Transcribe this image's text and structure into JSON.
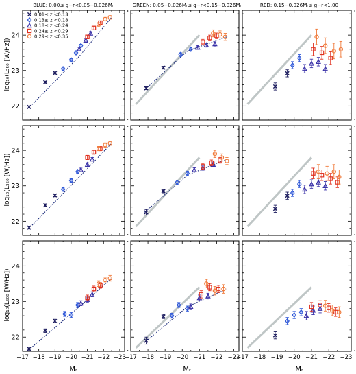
{
  "figure": {
    "column_titles": [
      "BLUE: 0.00≤ g−r<0.05−0.026Mᵣ",
      "GREEN: 0.05−0.026Mᵣ≤ g−r<0.15−0.026Mᵣ",
      "RED: 0.15−0.026Mᵣ≤ g−r<1.00"
    ],
    "row_ylabels": [
      "log₁₀(L₂₅₀ [W/Hz])",
      "log₁₀(L₃₅₀ [W/Hz])",
      "log₁₀(L₅₀₀ [W/Hz])"
    ],
    "xlabel": "Mᵣ",
    "x_tick_labels": [
      "−17",
      "−18",
      "−19",
      "−20",
      "−21",
      "−22",
      "−23"
    ],
    "y_tick_labels": [
      "22",
      "23",
      "24"
    ],
    "legend": [
      {
        "label": "0.01≤ z <0.13",
        "marker": "x",
        "color": "#1c1c5e"
      },
      {
        "label": "0.13≤ z <0.18",
        "marker": "diamond",
        "color": "#2f58d8"
      },
      {
        "label": "0.18≤ z <0.24",
        "marker": "triangle",
        "color": "#3a32a8"
      },
      {
        "label": "0.24≤ z <0.29",
        "marker": "square",
        "color": "#e0301e"
      },
      {
        "label": "0.29≤ z <0.35",
        "marker": "circle",
        "color": "#f07a3a"
      }
    ]
  },
  "chart_data": {
    "type": "scatter",
    "grid": false,
    "legend_position": "top-left",
    "xlim": [
      -17,
      -23.3
    ],
    "ylim": [
      21.6,
      24.7
    ],
    "x_ticks": [
      -17,
      -18,
      -19,
      -20,
      -21,
      -22,
      -23
    ],
    "y_ticks": [
      22,
      23,
      24
    ],
    "marker_colors": [
      "#1c1c5e",
      "#2f58d8",
      "#3a32a8",
      "#e0301e",
      "#f07a3a"
    ],
    "panels": [
      {
        "row": 0,
        "col": 0,
        "fit": [
          [
            -17.4,
            21.95
          ],
          [
            -20.5,
            23.4
          ],
          [
            -22.5,
            24.5
          ]
        ],
        "reference": null,
        "points": [
          {
            "s": 0,
            "x": -17.4,
            "y": 21.97,
            "e": 0.03
          },
          {
            "s": 0,
            "x": -18.4,
            "y": 22.67,
            "e": 0.03
          },
          {
            "s": 0,
            "x": -19.0,
            "y": 22.93,
            "e": 0.03
          },
          {
            "s": 1,
            "x": -19.5,
            "y": 23.05,
            "e": 0.04
          },
          {
            "s": 1,
            "x": -20.0,
            "y": 23.3,
            "e": 0.04
          },
          {
            "s": 1,
            "x": -20.3,
            "y": 23.5,
            "e": 0.04
          },
          {
            "s": 1,
            "x": -20.6,
            "y": 23.7,
            "e": 0.04
          },
          {
            "s": 2,
            "x": -20.5,
            "y": 23.6,
            "e": 0.04
          },
          {
            "s": 2,
            "x": -20.9,
            "y": 23.85,
            "e": 0.04
          },
          {
            "s": 2,
            "x": -21.2,
            "y": 24.05,
            "e": 0.05
          },
          {
            "s": 3,
            "x": -21.0,
            "y": 23.95,
            "e": 0.05
          },
          {
            "s": 3,
            "x": -21.4,
            "y": 24.2,
            "e": 0.05
          },
          {
            "s": 3,
            "x": -21.8,
            "y": 24.35,
            "e": 0.05
          },
          {
            "s": 4,
            "x": -21.7,
            "y": 24.3,
            "e": 0.05
          },
          {
            "s": 4,
            "x": -22.1,
            "y": 24.45,
            "e": 0.05
          },
          {
            "s": 4,
            "x": -22.4,
            "y": 24.5,
            "e": 0.05
          }
        ]
      },
      {
        "row": 0,
        "col": 1,
        "fit": [
          [
            -17.8,
            22.45
          ],
          [
            -20.3,
            23.55
          ],
          [
            -22.6,
            23.95
          ]
        ],
        "reference": [
          [
            -17.3,
            22.05
          ],
          [
            -21.0,
            24.0
          ]
        ],
        "points": [
          {
            "s": 0,
            "x": -17.9,
            "y": 22.5,
            "e": 0.04
          },
          {
            "s": 0,
            "x": -18.9,
            "y": 23.08,
            "e": 0.04
          },
          {
            "s": 1,
            "x": -19.9,
            "y": 23.45,
            "e": 0.05
          },
          {
            "s": 1,
            "x": -20.5,
            "y": 23.6,
            "e": 0.05
          },
          {
            "s": 2,
            "x": -20.9,
            "y": 23.65,
            "e": 0.05
          },
          {
            "s": 2,
            "x": -21.4,
            "y": 23.72,
            "e": 0.06
          },
          {
            "s": 2,
            "x": -21.9,
            "y": 23.75,
            "e": 0.06
          },
          {
            "s": 3,
            "x": -21.2,
            "y": 23.8,
            "e": 0.08
          },
          {
            "s": 3,
            "x": -21.6,
            "y": 23.92,
            "e": 0.08
          },
          {
            "s": 3,
            "x": -22.0,
            "y": 23.98,
            "e": 0.08
          },
          {
            "s": 4,
            "x": -21.8,
            "y": 24.05,
            "e": 0.1
          },
          {
            "s": 4,
            "x": -22.2,
            "y": 24.02,
            "e": 0.1
          },
          {
            "s": 4,
            "x": -22.5,
            "y": 23.95,
            "e": 0.1
          }
        ]
      },
      {
        "row": 0,
        "col": 2,
        "fit": null,
        "reference": [
          [
            -17.3,
            22.05
          ],
          [
            -21.0,
            24.0
          ]
        ],
        "points": [
          {
            "s": 0,
            "x": -18.9,
            "y": 22.55,
            "e": 0.1
          },
          {
            "s": 0,
            "x": -19.6,
            "y": 22.92,
            "e": 0.1
          },
          {
            "s": 1,
            "x": -19.9,
            "y": 23.15,
            "e": 0.1
          },
          {
            "s": 1,
            "x": -20.3,
            "y": 23.35,
            "e": 0.1
          },
          {
            "s": 2,
            "x": -20.6,
            "y": 23.05,
            "e": 0.12
          },
          {
            "s": 2,
            "x": -21.0,
            "y": 23.2,
            "e": 0.12
          },
          {
            "s": 2,
            "x": -21.4,
            "y": 23.25,
            "e": 0.12
          },
          {
            "s": 2,
            "x": -21.8,
            "y": 23.05,
            "e": 0.12
          },
          {
            "s": 3,
            "x": -21.1,
            "y": 23.6,
            "e": 0.18
          },
          {
            "s": 3,
            "x": -21.6,
            "y": 23.5,
            "e": 0.18
          },
          {
            "s": 3,
            "x": -22.1,
            "y": 23.35,
            "e": 0.18
          },
          {
            "s": 4,
            "x": -21.3,
            "y": 23.95,
            "e": 0.22
          },
          {
            "s": 4,
            "x": -21.8,
            "y": 23.7,
            "e": 0.22
          },
          {
            "s": 4,
            "x": -22.3,
            "y": 23.55,
            "e": 0.22
          },
          {
            "s": 4,
            "x": -22.7,
            "y": 23.6,
            "e": 0.22
          }
        ]
      },
      {
        "row": 1,
        "col": 0,
        "fit": [
          [
            -17.4,
            21.8
          ],
          [
            -20.5,
            23.25
          ],
          [
            -22.5,
            24.2
          ]
        ],
        "reference": null,
        "points": [
          {
            "s": 0,
            "x": -17.4,
            "y": 21.82,
            "e": 0.04
          },
          {
            "s": 0,
            "x": -18.4,
            "y": 22.45,
            "e": 0.04
          },
          {
            "s": 0,
            "x": -19.0,
            "y": 22.73,
            "e": 0.04
          },
          {
            "s": 1,
            "x": -19.5,
            "y": 22.9,
            "e": 0.05
          },
          {
            "s": 1,
            "x": -20.0,
            "y": 23.15,
            "e": 0.05
          },
          {
            "s": 1,
            "x": -20.4,
            "y": 23.4,
            "e": 0.05
          },
          {
            "s": 2,
            "x": -20.6,
            "y": 23.45,
            "e": 0.05
          },
          {
            "s": 2,
            "x": -21.0,
            "y": 23.6,
            "e": 0.05
          },
          {
            "s": 2,
            "x": -21.3,
            "y": 23.75,
            "e": 0.05
          },
          {
            "s": 3,
            "x": -21.0,
            "y": 23.8,
            "e": 0.06
          },
          {
            "s": 3,
            "x": -21.4,
            "y": 23.95,
            "e": 0.06
          },
          {
            "s": 3,
            "x": -21.8,
            "y": 24.05,
            "e": 0.06
          },
          {
            "s": 4,
            "x": -21.7,
            "y": 24.05,
            "e": 0.06
          },
          {
            "s": 4,
            "x": -22.1,
            "y": 24.15,
            "e": 0.06
          },
          {
            "s": 4,
            "x": -22.4,
            "y": 24.2,
            "e": 0.06
          }
        ]
      },
      {
        "row": 1,
        "col": 1,
        "fit": [
          [
            -17.8,
            22.25
          ],
          [
            -20.3,
            23.3
          ],
          [
            -22.6,
            23.75
          ]
        ],
        "reference": [
          [
            -17.3,
            21.85
          ],
          [
            -21.0,
            23.8
          ]
        ],
        "points": [
          {
            "s": 0,
            "x": -17.9,
            "y": 22.25,
            "e": 0.08
          },
          {
            "s": 0,
            "x": -18.9,
            "y": 22.85,
            "e": 0.05
          },
          {
            "s": 1,
            "x": -19.7,
            "y": 23.1,
            "e": 0.06
          },
          {
            "s": 1,
            "x": -20.3,
            "y": 23.35,
            "e": 0.06
          },
          {
            "s": 2,
            "x": -20.7,
            "y": 23.45,
            "e": 0.06
          },
          {
            "s": 2,
            "x": -21.2,
            "y": 23.5,
            "e": 0.06
          },
          {
            "s": 2,
            "x": -21.8,
            "y": 23.6,
            "e": 0.07
          },
          {
            "s": 3,
            "x": -21.2,
            "y": 23.55,
            "e": 0.08
          },
          {
            "s": 3,
            "x": -21.7,
            "y": 23.65,
            "e": 0.08
          },
          {
            "s": 3,
            "x": -22.2,
            "y": 23.72,
            "e": 0.08
          },
          {
            "s": 4,
            "x": -21.9,
            "y": 23.9,
            "e": 0.1
          },
          {
            "s": 4,
            "x": -22.3,
            "y": 23.8,
            "e": 0.1
          },
          {
            "s": 4,
            "x": -22.6,
            "y": 23.7,
            "e": 0.1
          }
        ]
      },
      {
        "row": 1,
        "col": 2,
        "fit": null,
        "reference": [
          [
            -17.3,
            21.85
          ],
          [
            -21.0,
            23.8
          ]
        ],
        "points": [
          {
            "s": 0,
            "x": -18.9,
            "y": 22.35,
            "e": 0.1
          },
          {
            "s": 0,
            "x": -19.6,
            "y": 22.72,
            "e": 0.1
          },
          {
            "s": 1,
            "x": -19.9,
            "y": 22.8,
            "e": 0.1
          },
          {
            "s": 1,
            "x": -20.3,
            "y": 23.05,
            "e": 0.1
          },
          {
            "s": 2,
            "x": -20.6,
            "y": 22.9,
            "e": 0.12
          },
          {
            "s": 2,
            "x": -21.0,
            "y": 23.05,
            "e": 0.12
          },
          {
            "s": 2,
            "x": -21.4,
            "y": 23.1,
            "e": 0.12
          },
          {
            "s": 2,
            "x": -21.8,
            "y": 23.0,
            "e": 0.12
          },
          {
            "s": 3,
            "x": -21.1,
            "y": 23.35,
            "e": 0.15
          },
          {
            "s": 3,
            "x": -21.6,
            "y": 23.3,
            "e": 0.15
          },
          {
            "s": 3,
            "x": -22.1,
            "y": 23.2,
            "e": 0.15
          },
          {
            "s": 3,
            "x": -22.5,
            "y": 23.1,
            "e": 0.15
          },
          {
            "s": 4,
            "x": -21.4,
            "y": 23.4,
            "e": 0.2
          },
          {
            "s": 4,
            "x": -21.9,
            "y": 23.35,
            "e": 0.2
          },
          {
            "s": 4,
            "x": -22.3,
            "y": 23.4,
            "e": 0.2
          },
          {
            "s": 4,
            "x": -22.6,
            "y": 23.25,
            "e": 0.2
          }
        ]
      },
      {
        "row": 2,
        "col": 0,
        "fit": [
          [
            -17.4,
            21.65
          ],
          [
            -20.5,
            22.85
          ],
          [
            -22.5,
            23.65
          ]
        ],
        "reference": null,
        "points": [
          {
            "s": 0,
            "x": -17.4,
            "y": 21.67,
            "e": 0.05
          },
          {
            "s": 0,
            "x": -18.4,
            "y": 22.18,
            "e": 0.05
          },
          {
            "s": 0,
            "x": -19.0,
            "y": 22.45,
            "e": 0.05
          },
          {
            "s": 1,
            "x": -19.6,
            "y": 22.65,
            "e": 0.07
          },
          {
            "s": 1,
            "x": -20.0,
            "y": 22.62,
            "e": 0.07
          },
          {
            "s": 1,
            "x": -20.4,
            "y": 22.9,
            "e": 0.07
          },
          {
            "s": 2,
            "x": -20.6,
            "y": 22.95,
            "e": 0.07
          },
          {
            "s": 2,
            "x": -21.0,
            "y": 23.05,
            "e": 0.07
          },
          {
            "s": 2,
            "x": -21.3,
            "y": 23.2,
            "e": 0.07
          },
          {
            "s": 3,
            "x": -21.0,
            "y": 23.1,
            "e": 0.08
          },
          {
            "s": 3,
            "x": -21.4,
            "y": 23.35,
            "e": 0.08
          },
          {
            "s": 3,
            "x": -21.8,
            "y": 23.45,
            "e": 0.08
          },
          {
            "s": 4,
            "x": -21.7,
            "y": 23.5,
            "e": 0.08
          },
          {
            "s": 4,
            "x": -22.1,
            "y": 23.6,
            "e": 0.08
          },
          {
            "s": 4,
            "x": -22.4,
            "y": 23.65,
            "e": 0.08
          }
        ]
      },
      {
        "row": 2,
        "col": 1,
        "fit": [
          [
            -17.8,
            21.85
          ],
          [
            -20.3,
            22.85
          ],
          [
            -22.6,
            23.35
          ]
        ],
        "reference": [
          [
            -17.3,
            21.7
          ],
          [
            -21.0,
            23.4
          ]
        ],
        "points": [
          {
            "s": 0,
            "x": -17.9,
            "y": 21.9,
            "e": 0.1
          },
          {
            "s": 0,
            "x": -18.9,
            "y": 22.58,
            "e": 0.06
          },
          {
            "s": 1,
            "x": -19.4,
            "y": 22.6,
            "e": 0.07
          },
          {
            "s": 1,
            "x": -19.8,
            "y": 22.9,
            "e": 0.07
          },
          {
            "s": 1,
            "x": -20.3,
            "y": 22.8,
            "e": 0.07
          },
          {
            "s": 2,
            "x": -20.5,
            "y": 22.85,
            "e": 0.08
          },
          {
            "s": 2,
            "x": -21.0,
            "y": 23.1,
            "e": 0.08
          },
          {
            "s": 2,
            "x": -21.5,
            "y": 23.15,
            "e": 0.08
          },
          {
            "s": 3,
            "x": -21.1,
            "y": 23.2,
            "e": 0.1
          },
          {
            "s": 3,
            "x": -21.6,
            "y": 23.4,
            "e": 0.1
          },
          {
            "s": 3,
            "x": -22.1,
            "y": 23.35,
            "e": 0.1
          },
          {
            "s": 4,
            "x": -21.4,
            "y": 23.5,
            "e": 0.12
          },
          {
            "s": 4,
            "x": -21.9,
            "y": 23.3,
            "e": 0.12
          },
          {
            "s": 4,
            "x": -22.4,
            "y": 23.35,
            "e": 0.12
          }
        ]
      },
      {
        "row": 2,
        "col": 2,
        "fit": null,
        "reference": [
          [
            -17.3,
            21.7
          ],
          [
            -21.0,
            23.4
          ]
        ],
        "points": [
          {
            "s": 0,
            "x": -18.9,
            "y": 22.05,
            "e": 0.1
          },
          {
            "s": 1,
            "x": -19.6,
            "y": 22.45,
            "e": 0.1
          },
          {
            "s": 1,
            "x": -20.0,
            "y": 22.62,
            "e": 0.1
          },
          {
            "s": 1,
            "x": -20.4,
            "y": 22.7,
            "e": 0.1
          },
          {
            "s": 2,
            "x": -20.7,
            "y": 22.6,
            "e": 0.12
          },
          {
            "s": 2,
            "x": -21.1,
            "y": 22.75,
            "e": 0.12
          },
          {
            "s": 2,
            "x": -21.5,
            "y": 22.8,
            "e": 0.12
          },
          {
            "s": 3,
            "x": -21.0,
            "y": 22.85,
            "e": 0.12
          },
          {
            "s": 3,
            "x": -21.5,
            "y": 22.9,
            "e": 0.12
          },
          {
            "s": 3,
            "x": -22.0,
            "y": 22.82,
            "e": 0.12
          },
          {
            "s": 3,
            "x": -22.4,
            "y": 22.7,
            "e": 0.12
          },
          {
            "s": 4,
            "x": -21.8,
            "y": 22.88,
            "e": 0.15
          },
          {
            "s": 4,
            "x": -22.2,
            "y": 22.75,
            "e": 0.15
          },
          {
            "s": 4,
            "x": -22.6,
            "y": 22.7,
            "e": 0.15
          }
        ]
      }
    ]
  }
}
